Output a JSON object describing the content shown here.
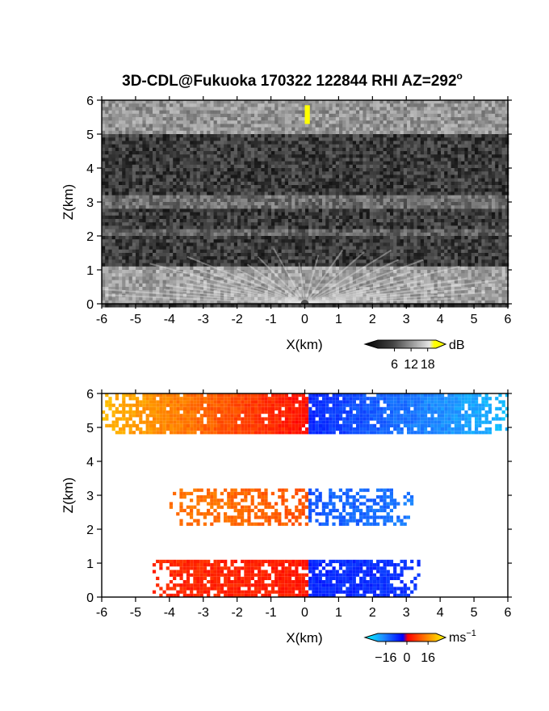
{
  "title": "3D-CDL@Fukuoka 170322 122844 RHI AZ=292",
  "title_degree": "o",
  "chart_data": [
    {
      "type": "heatmap",
      "variable": "reflectivity",
      "xlabel": "X(km)",
      "ylabel": "Z(km)",
      "xlim": [
        -6,
        6
      ],
      "ylim": [
        0,
        6
      ],
      "xticks": [
        "-6",
        "-5",
        "-4",
        "-3",
        "-2",
        "-1",
        "0",
        "1",
        "2",
        "3",
        "4",
        "5",
        "6"
      ],
      "yticks": [
        "0",
        "1",
        "2",
        "3",
        "4",
        "5",
        "6"
      ],
      "colorbar": {
        "unit": "dB",
        "ticks": [
          "6",
          "12",
          "18"
        ],
        "tick_values": [
          6,
          12,
          18
        ],
        "range": [
          0,
          21
        ],
        "colors": [
          "#000000",
          "#666666",
          "#e6e6e6",
          "#ffff00"
        ]
      },
      "layers": [
        {
          "z": [
            5.05,
            5.95
          ],
          "level": 13
        },
        {
          "z": [
            2.8,
            3.2
          ],
          "level": 9
        },
        {
          "z": [
            2.05,
            2.2
          ],
          "level": 8
        },
        {
          "z": [
            0.0,
            1.1
          ],
          "level": 14
        }
      ],
      "yellow_patch": {
        "x": [
          0.0,
          0.15
        ],
        "z": [
          5.3,
          5.85
        ]
      },
      "background_level": 4
    },
    {
      "type": "heatmap",
      "variable": "doppler velocity",
      "xlabel": "X(km)",
      "ylabel": "Z(km)",
      "xlim": [
        -6,
        6
      ],
      "ylim": [
        0,
        6
      ],
      "xticks": [
        "-6",
        "-5",
        "-4",
        "-3",
        "-2",
        "-1",
        "0",
        "1",
        "2",
        "3",
        "4",
        "5",
        "6"
      ],
      "yticks": [
        "0",
        "1",
        "2",
        "3",
        "4",
        "5",
        "6"
      ],
      "colorbar": {
        "unit": "ms",
        "unit_exponent": "−1",
        "ticks": [
          "−16",
          "0",
          "16"
        ],
        "tick_values": [
          -16,
          0,
          16
        ],
        "range": [
          -22,
          22
        ],
        "colors": [
          "#00ffff",
          "#1e90ff",
          "#0000ff",
          "#ff0000",
          "#ff8c00",
          "#ffff00"
        ]
      },
      "layers": [
        {
          "x": [
            -6.0,
            6.0
          ],
          "z": [
            4.8,
            6.0
          ],
          "velocity_left": 14,
          "velocity_right": -12
        },
        {
          "x": [
            -4.0,
            3.2
          ],
          "z": [
            2.1,
            3.2
          ],
          "velocity_left": 10,
          "velocity_right": -10
        },
        {
          "x": [
            -4.5,
            3.4
          ],
          "z": [
            0.0,
            1.1
          ],
          "velocity_left": 4,
          "velocity_right": -5
        }
      ]
    }
  ]
}
